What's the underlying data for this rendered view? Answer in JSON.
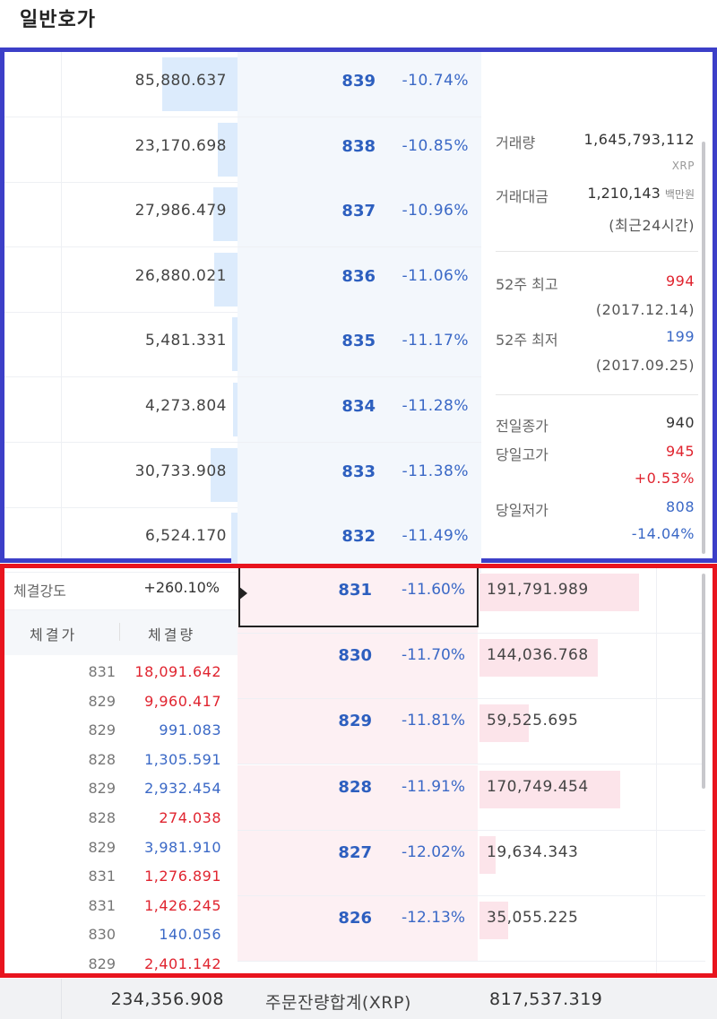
{
  "title": "일반호가",
  "asks": [
    {
      "qty": "85,880.637",
      "price": "839",
      "pct": "-10.74%",
      "bar": 84
    },
    {
      "qty": "23,170.698",
      "price": "838",
      "pct": "-10.85%",
      "bar": 22
    },
    {
      "qty": "27,986.479",
      "price": "837",
      "pct": "-10.96%",
      "bar": 27
    },
    {
      "qty": "26,880.021",
      "price": "836",
      "pct": "-11.06%",
      "bar": 26
    },
    {
      "qty": "5,481.331",
      "price": "835",
      "pct": "-11.17%",
      "bar": 6
    },
    {
      "qty": "4,273.804",
      "price": "834",
      "pct": "-11.28%",
      "bar": 5
    },
    {
      "qty": "30,733.908",
      "price": "833",
      "pct": "-11.38%",
      "bar": 30
    },
    {
      "qty": "6,524.170",
      "price": "832",
      "pct": "-11.49%",
      "bar": 7
    }
  ],
  "info": {
    "volume_label": "거래량",
    "volume_value": "1,645,793,112",
    "volume_unit": "XRP",
    "amount_label": "거래대금",
    "amount_value": "1,210,143",
    "amount_unit": "백만원",
    "period": "(최근24시간)",
    "high52_label": "52주 최고",
    "high52_value": "994",
    "high52_date": "(2017.12.14)",
    "low52_label": "52주 최저",
    "low52_value": "199",
    "low52_date": "(2017.09.25)",
    "prev_close_label": "전일종가",
    "prev_close_value": "940",
    "day_high_label": "당일고가",
    "day_high_value": "945",
    "day_high_pct": "+0.53%",
    "day_low_label": "당일저가",
    "day_low_value": "808",
    "day_low_pct": "-14.04%"
  },
  "strength": {
    "label": "체결강도",
    "value": "+260.10%"
  },
  "trade_head": {
    "price": "체결가",
    "qty": "체결량"
  },
  "trades": [
    {
      "price": "831",
      "qty": "18,091.642",
      "side": "buy"
    },
    {
      "price": "829",
      "qty": "9,960.417",
      "side": "buy"
    },
    {
      "price": "829",
      "qty": "991.083",
      "side": "sell"
    },
    {
      "price": "828",
      "qty": "1,305.591",
      "side": "sell"
    },
    {
      "price": "829",
      "qty": "2,932.454",
      "side": "sell"
    },
    {
      "price": "828",
      "qty": "274.038",
      "side": "buy"
    },
    {
      "price": "829",
      "qty": "3,981.910",
      "side": "sell"
    },
    {
      "price": "831",
      "qty": "1,276.891",
      "side": "buy"
    },
    {
      "price": "831",
      "qty": "1,426.245",
      "side": "buy"
    },
    {
      "price": "830",
      "qty": "140.056",
      "side": "sell"
    },
    {
      "price": "829",
      "qty": "2,401.142",
      "side": "buy"
    }
  ],
  "bids": [
    {
      "price": "831",
      "pct": "-11.60%",
      "qty": "191,791.989",
      "bar": 178
    },
    {
      "price": "830",
      "pct": "-11.70%",
      "qty": "144,036.768",
      "bar": 132
    },
    {
      "price": "829",
      "pct": "-11.81%",
      "qty": "59,525.695",
      "bar": 55
    },
    {
      "price": "828",
      "pct": "-11.91%",
      "qty": "170,749.454",
      "bar": 157
    },
    {
      "price": "827",
      "pct": "-12.02%",
      "qty": "19,634.343",
      "bar": 18
    },
    {
      "price": "826",
      "pct": "-12.13%",
      "qty": "35,055.225",
      "bar": 32
    }
  ],
  "footer": {
    "ask_total": "234,356.908",
    "label": "주문잔량합계(XRP)",
    "bid_total": "817,537.319"
  },
  "colors": {
    "up": "#e0242f",
    "down": "#3a68c6",
    "ask_border": "#3c3fc8",
    "bid_border": "#e8141e"
  }
}
